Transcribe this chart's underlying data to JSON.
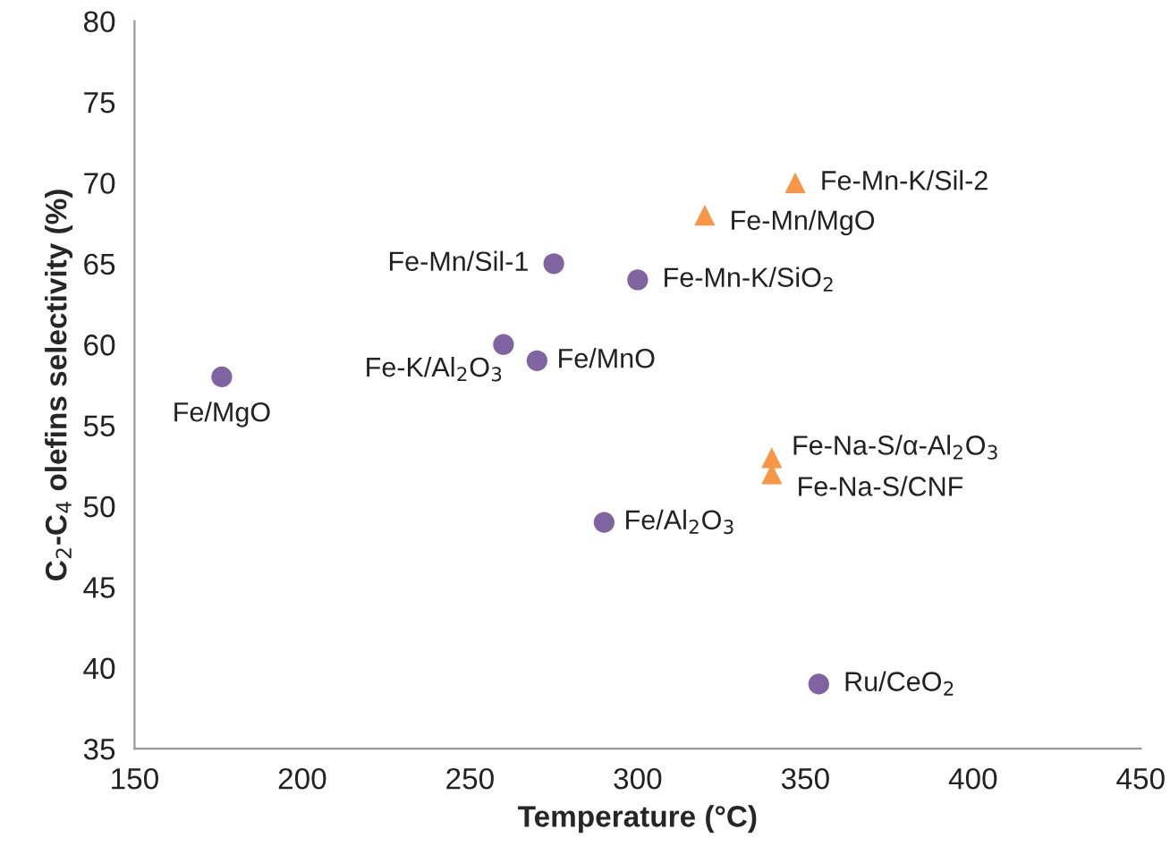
{
  "chart_data": {
    "type": "scatter",
    "xlabel": "Temperature (°C)",
    "ylabel": "C$_{2}$-C$_{4}$ olefins selectivity (%)",
    "xlim": [
      150,
      450
    ],
    "xticks": [
      150,
      200,
      250,
      300,
      350,
      400,
      450
    ],
    "ylim": [
      35,
      80
    ],
    "yticks": [
      35,
      40,
      45,
      50,
      55,
      60,
      65,
      70,
      75,
      80
    ],
    "grid": false,
    "legend": false,
    "series": [
      {
        "color": "#8064a2",
        "marker": "circle",
        "x": [
          176,
          260,
          270,
          275,
          300,
          290,
          354
        ],
        "values": [
          58,
          60,
          59,
          65,
          64,
          49,
          39
        ]
      },
      {
        "color": "#f79646",
        "marker": "triangle",
        "x": [
          320,
          347,
          340,
          340
        ],
        "values": [
          68,
          70,
          53,
          52
        ]
      }
    ],
    "annotations": [
      {
        "text": "Fe/MgO",
        "x": 176,
        "y": 58
      },
      {
        "text": "Fe-K/Al$_{2}$O$_{3}$",
        "x": 260,
        "y": 60
      },
      {
        "text": "Fe/MnO",
        "x": 270,
        "y": 59
      },
      {
        "text": "Fe-Mn/Sil-1",
        "x": 275,
        "y": 65
      },
      {
        "text": "Fe-Mn-K/SiO$_{2}$",
        "x": 300,
        "y": 64
      },
      {
        "text": "Fe/Al$_{2}$O$_{3}$",
        "x": 290,
        "y": 49
      },
      {
        "text": "Ru/CeO$_{2}$",
        "x": 354,
        "y": 39
      },
      {
        "text": "Fe-Mn/MgO",
        "x": 320,
        "y": 68
      },
      {
        "text": "Fe-Mn-K/Sil-2",
        "x": 347,
        "y": 70
      },
      {
        "text": "Fe-Na-S/α-Al$_{2}$O$_{3}$",
        "x": 340,
        "y": 53
      },
      {
        "text": "Fe-Na-S/CNF",
        "x": 340,
        "y": 52
      }
    ]
  }
}
